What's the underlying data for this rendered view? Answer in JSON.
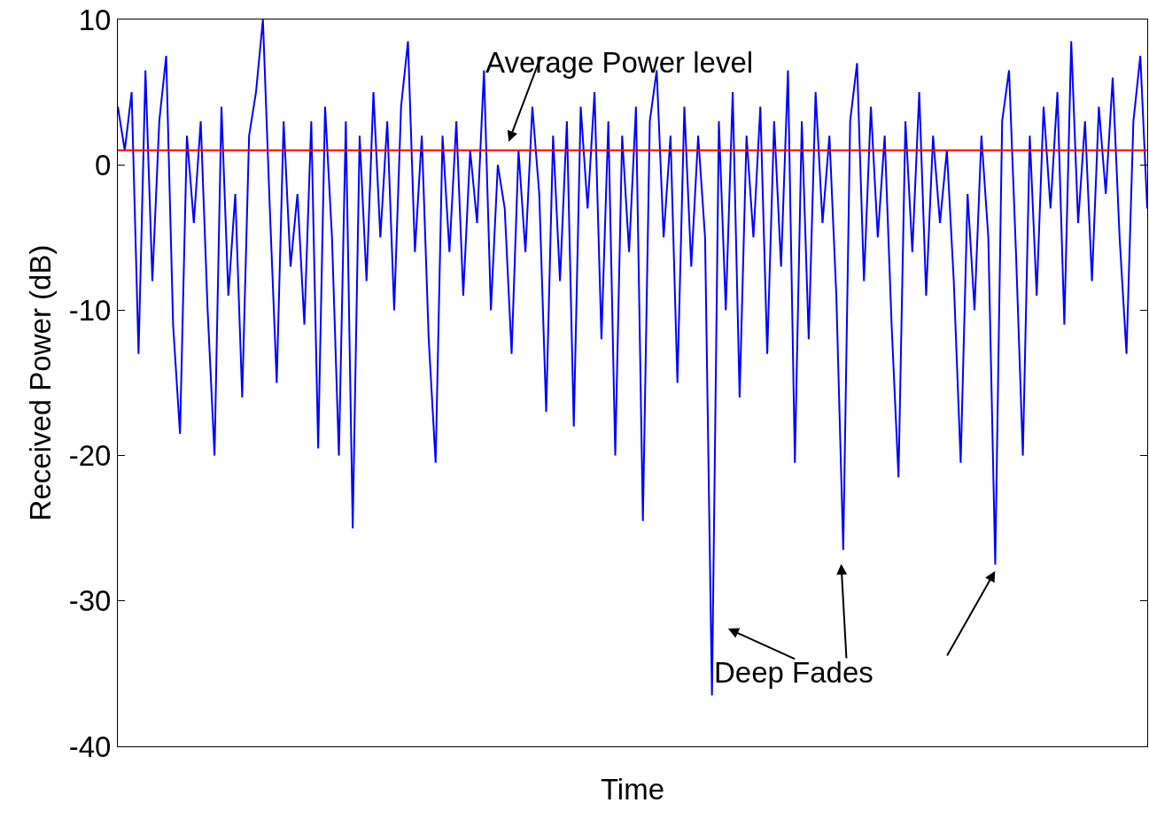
{
  "chart_data": {
    "type": "line",
    "xlabel": "Time",
    "ylabel": "Received Power (dB)",
    "categories": [
      null,
      null,
      null,
      null,
      null,
      null,
      null,
      null,
      null,
      null,
      null,
      null,
      null,
      null,
      null,
      null,
      null,
      null,
      null,
      null,
      null,
      null,
      null,
      null,
      null,
      null,
      null,
      null,
      null,
      null,
      null,
      null,
      null,
      null,
      null,
      null,
      null,
      null,
      null,
      null,
      null,
      null,
      null,
      null,
      null,
      null,
      null,
      null,
      null,
      null,
      null,
      null,
      null,
      null,
      null,
      null,
      null,
      null,
      null,
      null,
      null,
      null,
      null,
      null,
      null,
      null,
      null,
      null,
      null,
      null,
      null,
      null,
      null,
      null,
      null,
      null,
      null,
      null,
      null,
      null,
      null,
      null,
      null,
      null,
      null,
      null,
      null,
      null,
      null,
      null,
      null,
      null,
      null,
      null,
      null,
      null,
      null,
      null,
      null,
      null,
      null,
      null,
      null,
      null,
      null,
      null,
      null,
      null,
      null,
      null,
      null,
      null,
      null,
      null,
      null,
      null,
      null,
      null,
      null,
      null,
      null,
      null,
      null,
      null,
      null,
      null,
      null,
      null,
      null,
      null,
      null,
      null,
      null,
      null,
      null,
      null,
      null,
      null,
      null,
      null,
      null,
      null,
      null,
      null,
      null,
      null,
      null,
      null,
      null,
      null
    ],
    "series": [
      {
        "color": "#0000ff",
        "values": [
          4,
          1,
          5,
          -13,
          6.5,
          -8,
          3,
          7.5,
          -11,
          -18.5,
          2,
          -4,
          3,
          -10,
          -20,
          4,
          -9,
          -2,
          -16,
          2,
          5,
          10,
          -3,
          -15,
          3,
          -7,
          -2,
          -11,
          3,
          -19.5,
          4,
          -5,
          -20,
          3,
          -25,
          2,
          -8,
          5,
          -5,
          3,
          -10,
          4,
          8.5,
          -6,
          2,
          -12,
          -20.5,
          2,
          -6,
          3,
          -9,
          1,
          -4,
          6.5,
          -10,
          0,
          -3,
          -13,
          1,
          -6,
          4,
          -2,
          -17,
          2,
          -8,
          3,
          -18,
          4,
          -3,
          5,
          -12,
          3,
          -20,
          2,
          -6,
          4,
          -24.5,
          3,
          6.5,
          -5,
          2,
          -15,
          4,
          -7,
          2,
          -5,
          -36.5,
          3,
          -10,
          5,
          -16,
          2,
          -5,
          4,
          -13,
          3,
          -7,
          6.5,
          -20.5,
          3,
          -12,
          5,
          -4,
          2,
          -9,
          -26.5,
          3,
          7,
          -8,
          4,
          -5,
          2,
          -11,
          -21.5,
          3,
          -6,
          5,
          -9,
          2,
          -4,
          1,
          -8,
          -20.5,
          -2,
          -10,
          2,
          -5,
          -27.5,
          3,
          6.5,
          -6,
          -20,
          2,
          -9,
          4,
          -3,
          5,
          -11,
          8.5,
          -4,
          3,
          -8,
          4,
          -2,
          6,
          -5,
          -13,
          3,
          7.5,
          -3
        ]
      }
    ],
    "ylim": [
      -40,
      10
    ],
    "yticks": [
      -40,
      -30,
      -20,
      -10,
      0,
      10
    ],
    "ref_lines": [
      {
        "axis": "y",
        "value": 1,
        "color": "#ff0000"
      }
    ],
    "annotations": [
      "Average Power level",
      "Deep Fades"
    ],
    "grid": false
  }
}
